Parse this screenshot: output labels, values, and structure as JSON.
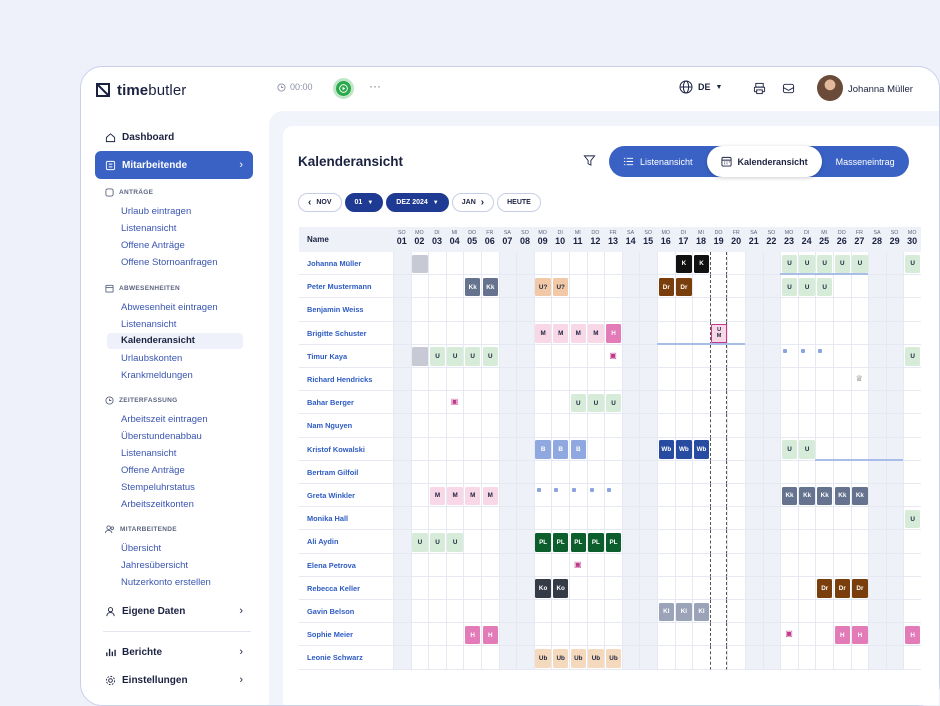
{
  "topbar": {
    "logo_bold": "time",
    "logo_light": "butler",
    "timer": "00:00",
    "more": "···",
    "language": "DE",
    "username": "Johanna Müller"
  },
  "sidebar": {
    "dashboard": "Dashboard",
    "employees": "Mitarbeitende",
    "requests": {
      "title": "ANTRÄGE",
      "items": [
        "Urlaub eintragen",
        "Listenansicht",
        "Offene Anträge",
        "Offene Stornoanfragen"
      ]
    },
    "absences": {
      "title": "ABWESENHEITEN",
      "items": [
        "Abwesenheit eintragen",
        "Listenansicht",
        "Kalenderansicht",
        "Urlaubskonten",
        "Krankmeldungen"
      ],
      "active_index": 2
    },
    "timetracking": {
      "title": "ZEITERFASSUNG",
      "items": [
        "Arbeitszeit eintragen",
        "Überstundenabbau",
        "Listenansicht",
        "Offene Anträge",
        "Stempeluhrstatus",
        "Arbeitszeitkonten"
      ]
    },
    "staff": {
      "title": "MITARBEITENDE",
      "items": [
        "Übersicht",
        "Jahresübersicht",
        "Nutzerkonto erstellen"
      ]
    },
    "own_data": "Eigene Daten",
    "reports": "Berichte",
    "settings": "Einstellungen"
  },
  "main": {
    "title": "Kalenderansicht",
    "tabs": [
      "Listenansicht",
      "Kalenderansicht",
      "Masseneintrag"
    ],
    "active_tab": 1,
    "nav": {
      "prev": "NOV",
      "day": "01",
      "month": "DEZ 2024",
      "next": "JAN",
      "today": "HEUTE"
    },
    "name_header": "Name"
  },
  "calendar": {
    "today_index": 18,
    "days": [
      {
        "w": "SO",
        "d": "01",
        "we": 1
      },
      {
        "w": "MO",
        "d": "02"
      },
      {
        "w": "DI",
        "d": "03"
      },
      {
        "w": "MI",
        "d": "04"
      },
      {
        "w": "DO",
        "d": "05"
      },
      {
        "w": "FR",
        "d": "06"
      },
      {
        "w": "SA",
        "d": "07",
        "we": 1
      },
      {
        "w": "SO",
        "d": "08",
        "we": 1
      },
      {
        "w": "MO",
        "d": "09"
      },
      {
        "w": "DI",
        "d": "10"
      },
      {
        "w": "MI",
        "d": "11"
      },
      {
        "w": "DO",
        "d": "12"
      },
      {
        "w": "FR",
        "d": "13"
      },
      {
        "w": "SA",
        "d": "14",
        "we": 1
      },
      {
        "w": "SO",
        "d": "15",
        "we": 1
      },
      {
        "w": "MO",
        "d": "16"
      },
      {
        "w": "DI",
        "d": "17"
      },
      {
        "w": "MI",
        "d": "18"
      },
      {
        "w": "DO",
        "d": "19"
      },
      {
        "w": "FR",
        "d": "20"
      },
      {
        "w": "SA",
        "d": "21",
        "we": 1
      },
      {
        "w": "SO",
        "d": "22",
        "we": 1
      },
      {
        "w": "MO",
        "d": "23"
      },
      {
        "w": "DI",
        "d": "24"
      },
      {
        "w": "MI",
        "d": "25"
      },
      {
        "w": "DO",
        "d": "26"
      },
      {
        "w": "FR",
        "d": "27"
      },
      {
        "w": "SA",
        "d": "28",
        "we": 1
      },
      {
        "w": "SO",
        "d": "29",
        "we": 1
      },
      {
        "w": "MO",
        "d": "30"
      }
    ],
    "legend_colors": {
      "U": "#d7ecd8",
      "Kk": "#66738f",
      "U?": "#f2c9a6",
      "Dr": "#7a3e0c",
      "K": "#111111",
      "M": "#f8d7e6",
      "H": "#e27bb8",
      "B": "#8fa9e0",
      "Wb": "#284ba2",
      "PL": "#0d5e2d",
      "Ko": "#353a47",
      "Ub": "#f5d9bc",
      "Kl": "#9aa3b8",
      "pending": "#c7cad4"
    },
    "employees": [
      {
        "name": "Johanna Müller",
        "marks": [
          [
            1,
            ""
          ],
          [
            16,
            "K"
          ],
          [
            17,
            "K"
          ],
          [
            22,
            "U"
          ],
          [
            23,
            "U"
          ],
          [
            24,
            "U"
          ],
          [
            25,
            "U"
          ],
          [
            26,
            "U"
          ],
          [
            29,
            "U"
          ]
        ],
        "line": [
          22,
          27
        ]
      },
      {
        "name": "Peter Mustermann",
        "marks": [
          [
            4,
            "Kk"
          ],
          [
            5,
            "Kk"
          ],
          [
            8,
            "U?"
          ],
          [
            9,
            "U?"
          ],
          [
            15,
            "Dr"
          ],
          [
            16,
            "Dr"
          ],
          [
            22,
            "U"
          ],
          [
            23,
            "U"
          ],
          [
            24,
            "U"
          ]
        ]
      },
      {
        "name": "Benjamin Weiss",
        "marks": []
      },
      {
        "name": "Brigitte Schuster",
        "marks": [
          [
            8,
            "M"
          ],
          [
            9,
            "M"
          ],
          [
            10,
            "M"
          ],
          [
            11,
            "M"
          ],
          [
            12,
            "H"
          ],
          [
            18,
            "U M"
          ]
        ],
        "line": [
          15,
          20
        ]
      },
      {
        "name": "Timur Kaya",
        "marks": [
          [
            1,
            ""
          ],
          [
            2,
            "U"
          ],
          [
            3,
            "U"
          ],
          [
            4,
            "U"
          ],
          [
            5,
            "U"
          ],
          [
            29,
            "U"
          ]
        ],
        "sq": [
          22,
          23,
          24
        ],
        "ic": [
          [
            12,
            "gift"
          ]
        ]
      },
      {
        "name": "Richard Hendricks",
        "marks": [],
        "ic": [
          [
            26,
            "crown"
          ]
        ]
      },
      {
        "name": "Bahar Berger",
        "marks": [
          [
            10,
            "U"
          ],
          [
            11,
            "U"
          ],
          [
            12,
            "U"
          ]
        ],
        "ic": [
          [
            3,
            "gift"
          ]
        ]
      },
      {
        "name": "Nam Nguyen",
        "marks": []
      },
      {
        "name": "Kristof Kowalski",
        "marks": [
          [
            8,
            "B"
          ],
          [
            9,
            "B"
          ],
          [
            10,
            "B"
          ],
          [
            15,
            "Wb"
          ],
          [
            16,
            "Wb"
          ],
          [
            17,
            "Wb"
          ],
          [
            22,
            "U"
          ],
          [
            23,
            "U"
          ]
        ],
        "line": [
          24,
          29
        ]
      },
      {
        "name": "Bertram Gilfoil",
        "marks": []
      },
      {
        "name": "Greta Winkler",
        "marks": [
          [
            2,
            "M"
          ],
          [
            3,
            "M"
          ],
          [
            4,
            "M"
          ],
          [
            5,
            "M"
          ],
          [
            22,
            "Kk"
          ],
          [
            23,
            "Kk"
          ],
          [
            24,
            "Kk"
          ],
          [
            25,
            "Kk"
          ],
          [
            26,
            "Kk"
          ]
        ],
        "sq": [
          8,
          9,
          10,
          11,
          12
        ]
      },
      {
        "name": "Monika Hall",
        "marks": [
          [
            29,
            "U"
          ]
        ]
      },
      {
        "name": "Ali Aydin",
        "marks": [
          [
            1,
            "U"
          ],
          [
            2,
            "U"
          ],
          [
            3,
            "U"
          ],
          [
            8,
            "PL"
          ],
          [
            9,
            "PL"
          ],
          [
            10,
            "PL"
          ],
          [
            11,
            "PL"
          ],
          [
            12,
            "PL"
          ]
        ]
      },
      {
        "name": "Elena Petrova",
        "marks": [],
        "ic": [
          [
            10,
            "gift"
          ]
        ]
      },
      {
        "name": "Rebecca Keller",
        "marks": [
          [
            8,
            "Ko"
          ],
          [
            9,
            "Ko"
          ],
          [
            24,
            "Dr"
          ],
          [
            25,
            "Dr"
          ],
          [
            26,
            "Dr"
          ]
        ]
      },
      {
        "name": "Gavin Belson",
        "marks": [
          [
            15,
            "Kl"
          ],
          [
            16,
            "Kl"
          ],
          [
            17,
            "Kl"
          ]
        ]
      },
      {
        "name": "Sophie Meier",
        "marks": [
          [
            4,
            "H"
          ],
          [
            5,
            "H"
          ],
          [
            25,
            "H"
          ],
          [
            26,
            "H"
          ],
          [
            29,
            "H"
          ]
        ],
        "ic": [
          [
            22,
            "gift"
          ]
        ]
      },
      {
        "name": "Leonie Schwarz",
        "marks": [
          [
            8,
            "Ub"
          ],
          [
            9,
            "Ub"
          ],
          [
            10,
            "Ub"
          ],
          [
            11,
            "Ub"
          ],
          [
            12,
            "Ub"
          ]
        ]
      }
    ]
  }
}
